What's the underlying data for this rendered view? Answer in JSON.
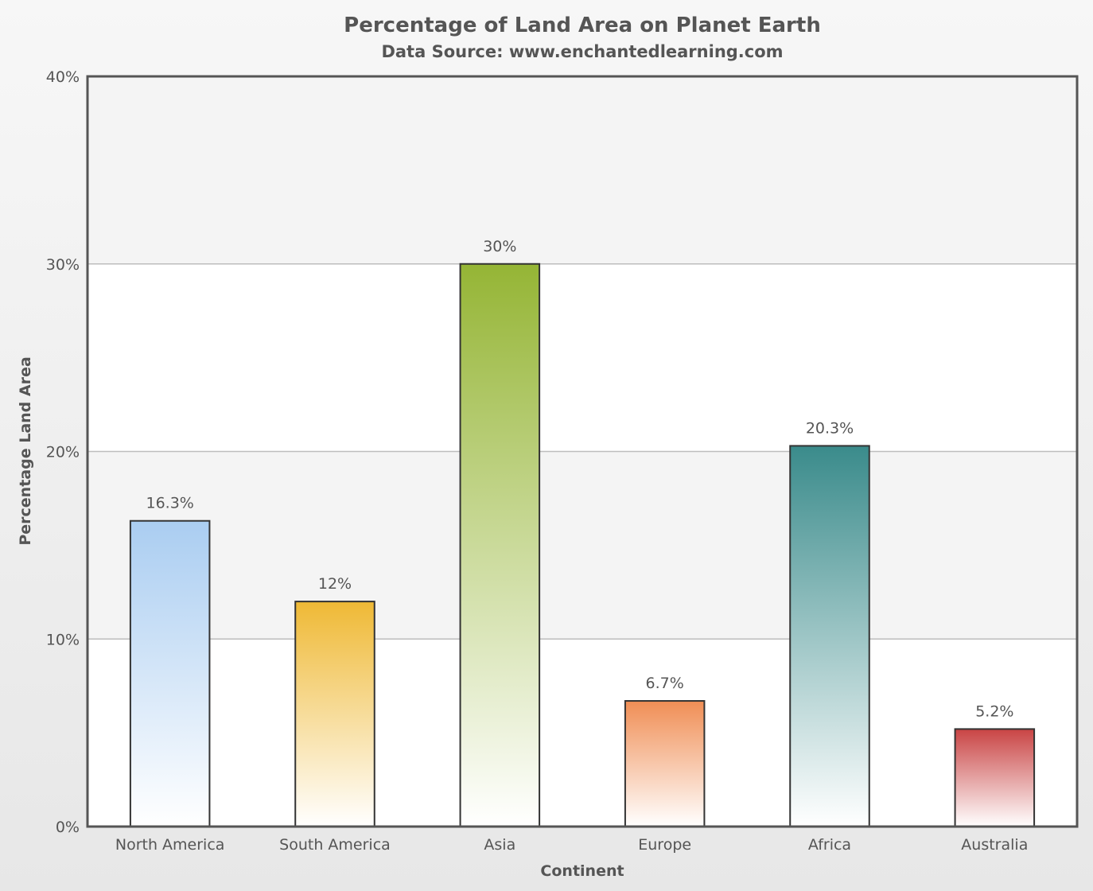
{
  "chart_data": {
    "type": "bar",
    "title": "Percentage of Land Area on Planet Earth",
    "subtitle": "Data Source: www.enchantedlearning.com",
    "xlabel": "Continent",
    "ylabel": "Percentage Land Area",
    "ylim": [
      0,
      40
    ],
    "yticks": [
      0,
      10,
      20,
      30,
      40
    ],
    "ytick_labels": [
      "0%",
      "10%",
      "20%",
      "30%",
      "40%"
    ],
    "categories": [
      "North America",
      "South America",
      "Asia",
      "Europe",
      "Africa",
      "Australia"
    ],
    "values": [
      16.3,
      12,
      30,
      6.7,
      20.3,
      5.2
    ],
    "data_labels": [
      "16.3%",
      "12%",
      "30%",
      "6.7%",
      "20.3%",
      "5.2%"
    ],
    "colors": [
      "#aacdf1",
      "#efb935",
      "#95b535",
      "#f08e55",
      "#3a8b8b",
      "#c94444"
    ],
    "grid": true,
    "legend": "none"
  }
}
